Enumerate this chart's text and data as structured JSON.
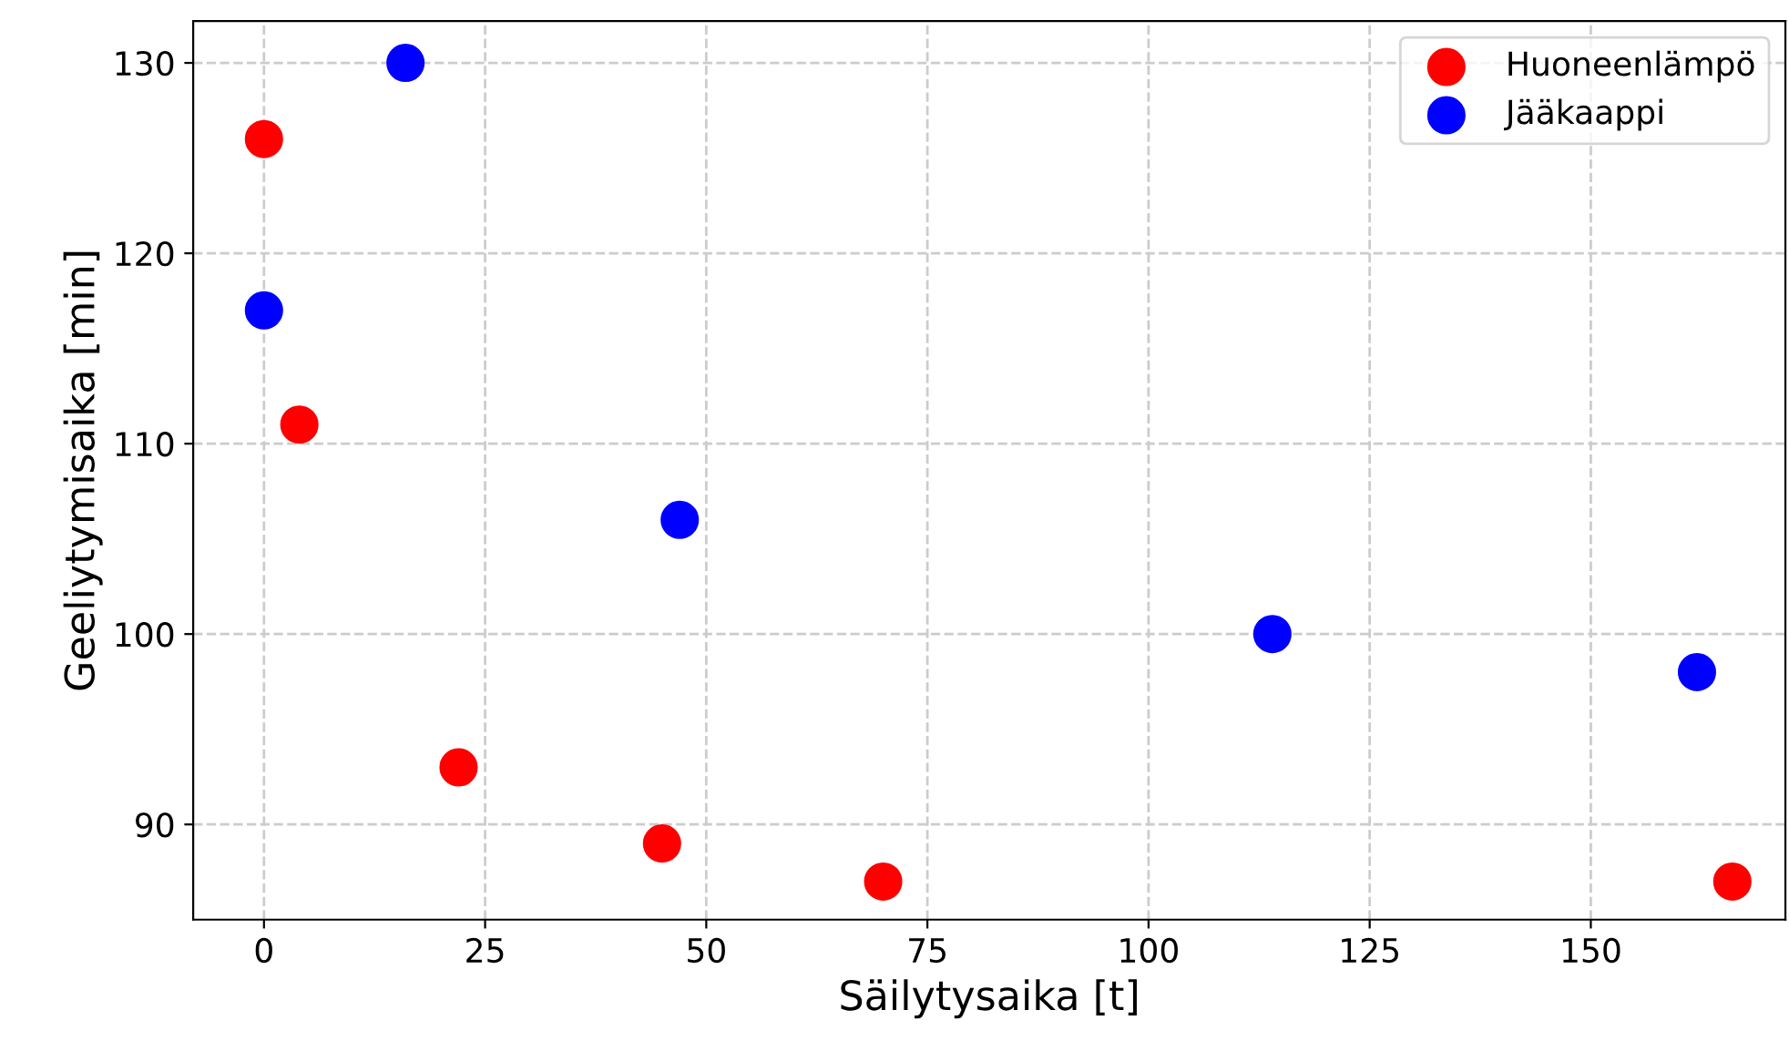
{
  "chart_data": {
    "type": "scatter",
    "xlabel": "Säilytysaika [t]",
    "ylabel": "Geeliytymisaika [min]",
    "series": [
      {
        "name": "Huoneenlämpö",
        "color": "#ff0000",
        "x": [
          0,
          4,
          22,
          45,
          70,
          166
        ],
        "values": [
          126,
          111,
          93,
          89,
          87,
          87
        ]
      },
      {
        "name": "Jääkaappi",
        "color": "#0000ff",
        "x": [
          0,
          16,
          47,
          114,
          162
        ],
        "values": [
          117,
          130,
          106,
          100,
          98
        ]
      }
    ],
    "xlim": [
      -8,
      172
    ],
    "ylim": [
      85,
      132.2
    ],
    "xticks": [
      0,
      25,
      50,
      75,
      100,
      125,
      150
    ],
    "yticks": [
      90,
      100,
      110,
      120,
      130
    ],
    "grid": true,
    "legend": "top right",
    "marker": "circle"
  }
}
